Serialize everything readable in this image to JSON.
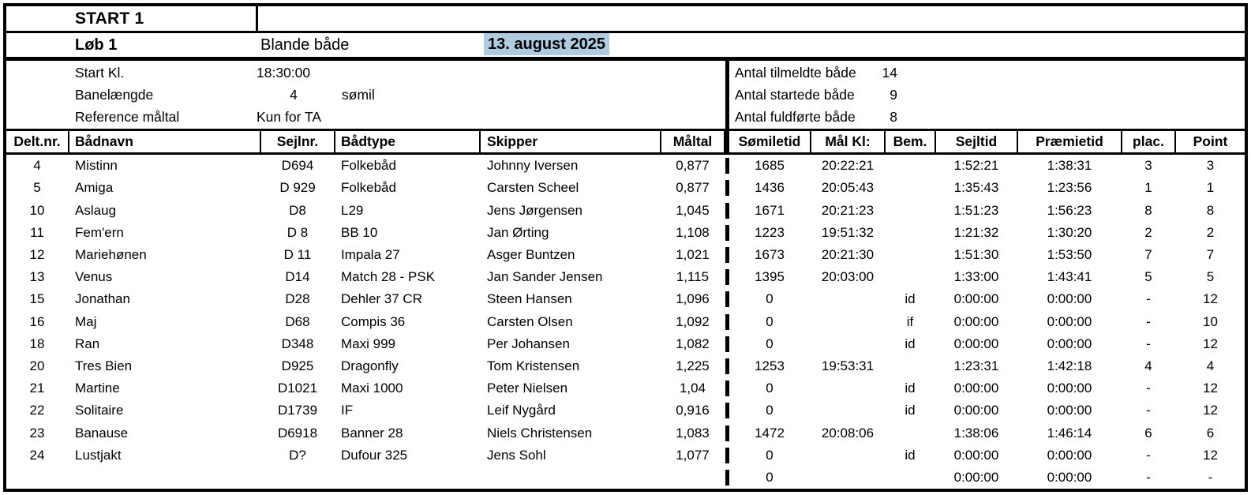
{
  "header": {
    "start_label": "START 1",
    "race_label": "Løb 1",
    "class_name": "Blande både",
    "date": "13. august 2025",
    "date_highlight_color": "#aecbe2"
  },
  "info": {
    "left": [
      {
        "label": "Start Kl.",
        "value": "18:30:00",
        "unit": ""
      },
      {
        "label": "Banelængde",
        "value": "4",
        "unit": "sømil"
      },
      {
        "label": "Reference måltal",
        "value": "Kun for TA",
        "unit": ""
      }
    ],
    "right": [
      {
        "label": "Antal tilmeldte både",
        "value": "14"
      },
      {
        "label": "Antal startede både",
        "value": "9"
      },
      {
        "label": "Antal fuldførte både",
        "value": "8"
      }
    ]
  },
  "table": {
    "columns": [
      "Delt.nr.",
      "Bådnavn",
      "Sejlnr.",
      "Bådtype",
      "Skipper",
      "Måltal",
      "Sømiletid",
      "Mål Kl:",
      "Bem.",
      "Sejltid",
      "Præmietid",
      "plac.",
      "Point"
    ],
    "rows": [
      [
        "4",
        "Mistinn",
        "D694",
        "Folkebåd",
        "Johnny Iversen",
        "0,877",
        "1685",
        "20:22:21",
        "",
        "1:52:21",
        "1:38:31",
        "3",
        "3"
      ],
      [
        "5",
        "Amiga",
        "D 929",
        "Folkebåd",
        "Carsten Scheel",
        "0,877",
        "1436",
        "20:05:43",
        "",
        "1:35:43",
        "1:23:56",
        "1",
        "1"
      ],
      [
        "10",
        "Aslaug",
        "D8",
        "L29",
        "Jens Jørgensen",
        "1,045",
        "1671",
        "20:21:23",
        "",
        "1:51:23",
        "1:56:23",
        "8",
        "8"
      ],
      [
        "11",
        "Fem'ern",
        "D 8",
        "BB 10",
        "Jan Ørting",
        "1,108",
        "1223",
        "19:51:32",
        "",
        "1:21:32",
        "1:30:20",
        "2",
        "2"
      ],
      [
        "12",
        "Mariehønen",
        "D 11",
        "Impala 27",
        "Asger Buntzen",
        "1,021",
        "1673",
        "20:21:30",
        "",
        "1:51:30",
        "1:53:50",
        "7",
        "7"
      ],
      [
        "13",
        "Venus",
        "D14",
        "Match 28 - PSK",
        "Jan Sander Jensen",
        "1,115",
        "1395",
        "20:03:00",
        "",
        "1:33:00",
        "1:43:41",
        "5",
        "5"
      ],
      [
        "15",
        "Jonathan",
        "D28",
        "Dehler 37 CR",
        "Steen Hansen",
        "1,096",
        "0",
        "",
        "id",
        "0:00:00",
        "0:00:00",
        "-",
        "12"
      ],
      [
        "16",
        "Maj",
        "D68",
        "Compis 36",
        "Carsten Olsen",
        "1,092",
        "0",
        "",
        "if",
        "0:00:00",
        "0:00:00",
        "-",
        "10"
      ],
      [
        "18",
        "Ran",
        "D348",
        "Maxi 999",
        "Per Johansen",
        "1,082",
        "0",
        "",
        "id",
        "0:00:00",
        "0:00:00",
        "-",
        "12"
      ],
      [
        "20",
        "Tres Bien",
        "D925",
        "Dragonfly",
        "Tom Kristensen",
        "1,225",
        "1253",
        "19:53:31",
        "",
        "1:23:31",
        "1:42:18",
        "4",
        "4"
      ],
      [
        "21",
        "Martine",
        "D1021",
        "Maxi 1000",
        "Peter Nielsen",
        "1,04",
        "0",
        "",
        "id",
        "0:00:00",
        "0:00:00",
        "-",
        "12"
      ],
      [
        "22",
        "Solitaire",
        "D1739",
        "IF",
        "Leif Nygård",
        "0,916",
        "0",
        "",
        "id",
        "0:00:00",
        "0:00:00",
        "-",
        "12"
      ],
      [
        "23",
        "Banause",
        "D6918",
        "Banner 28",
        "Niels Christensen",
        "1,083",
        "1472",
        "20:08:06",
        "",
        "1:38:06",
        "1:46:14",
        "6",
        "6"
      ],
      [
        "24",
        "Lustjakt",
        "D?",
        "Dufour 325",
        "Jens Sohl",
        "1,077",
        "0",
        "",
        "id",
        "0:00:00",
        "0:00:00",
        "-",
        "12"
      ],
      [
        "",
        "",
        "",
        "",
        "",
        "",
        "0",
        "",
        "",
        "0:00:00",
        "0:00:00",
        "-",
        "-"
      ]
    ]
  }
}
